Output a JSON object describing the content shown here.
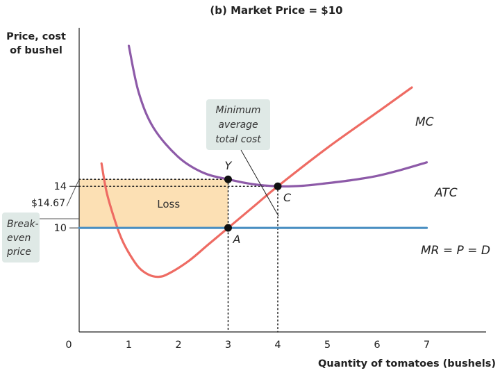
{
  "chart_data": {
    "type": "line",
    "title": "(b) Market Price = $10",
    "ylabel_line1": "Price, cost",
    "ylabel_line2": "of bushel",
    "xlabel": "Quantity of tomatoes (bushels)",
    "xlim": [
      0,
      8
    ],
    "ylim": [
      0,
      29
    ],
    "x_ticks": [
      "0",
      "1",
      "2",
      "3",
      "4",
      "5",
      "6",
      "7"
    ],
    "y_ticks": [
      {
        "value": 14.67,
        "label": "$14.67"
      },
      {
        "value": 14,
        "label": "14"
      },
      {
        "value": 10,
        "label": "10"
      }
    ],
    "series": [
      {
        "name": "MC",
        "color": "#ee6b63",
        "points": [
          [
            0.45,
            16.2
          ],
          [
            0.55,
            13.5
          ],
          [
            0.7,
            11
          ],
          [
            0.85,
            9
          ],
          [
            1,
            7.6
          ],
          [
            1.2,
            6.2
          ],
          [
            1.4,
            5.5
          ],
          [
            1.6,
            5.3
          ],
          [
            1.8,
            5.6
          ],
          [
            2.2,
            6.8
          ],
          [
            2.6,
            8.4
          ],
          [
            3,
            10
          ],
          [
            3.5,
            12
          ],
          [
            4,
            14
          ],
          [
            5,
            17.7
          ],
          [
            6,
            21.1
          ],
          [
            6.7,
            23.5
          ]
        ]
      },
      {
        "name": "ATC",
        "color": "#8d5aa8",
        "points": [
          [
            1,
            27.5
          ],
          [
            1.2,
            23
          ],
          [
            1.5,
            19.6
          ],
          [
            2,
            16.8
          ],
          [
            2.5,
            15.3
          ],
          [
            3,
            14.67
          ],
          [
            3.5,
            14.2
          ],
          [
            4,
            14
          ],
          [
            4.5,
            14.05
          ],
          [
            5,
            14.3
          ],
          [
            5.5,
            14.6
          ],
          [
            6,
            15
          ],
          [
            6.5,
            15.6
          ],
          [
            7,
            16.3
          ]
        ]
      },
      {
        "name": "MR = P = D",
        "color": "#4a8fc2",
        "points": [
          [
            0,
            10
          ],
          [
            7,
            10
          ]
        ]
      }
    ],
    "points": [
      {
        "label": "Y",
        "x": 3,
        "y": 14.67
      },
      {
        "label": "A",
        "x": 3,
        "y": 10
      },
      {
        "label": "C",
        "x": 4,
        "y": 14
      }
    ],
    "loss_region": {
      "label": "Loss",
      "x0": 0,
      "x1": 3,
      "y0": 10,
      "y1": 14.67,
      "color": "#fce0b4"
    },
    "annotations": {
      "min_atc": [
        "Minimum",
        "average",
        "total cost"
      ],
      "break_even": [
        "Break-",
        "even",
        "price"
      ]
    }
  }
}
